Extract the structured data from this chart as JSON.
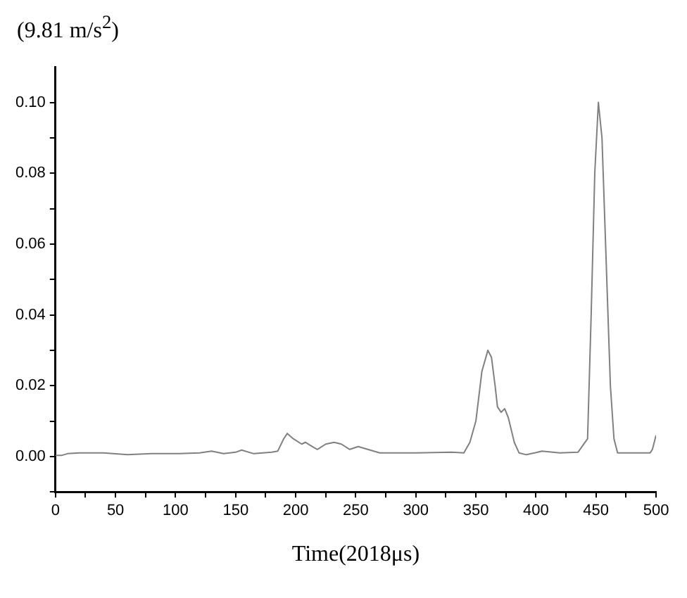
{
  "chart_data": {
    "type": "line",
    "ylabel": "(9.81 m/s$^{2}$)",
    "xlabel": "Time(2018μs)",
    "color": "#808080",
    "grid": false,
    "legend": false,
    "marker": "none",
    "line_style": "solid",
    "xlim": [
      0,
      500
    ],
    "xticks": [
      0,
      {
        "value": 25,
        "label": null
      },
      50,
      {
        "value": 75,
        "label": null
      },
      100,
      {
        "value": 125,
        "label": null
      },
      150,
      {
        "value": 175,
        "label": null
      },
      200,
      {
        "value": 225,
        "label": null
      },
      250,
      {
        "value": 275,
        "label": null
      },
      300,
      {
        "value": 325,
        "label": null
      },
      350,
      {
        "value": 375,
        "label": null
      },
      400,
      {
        "value": 425,
        "label": null
      },
      450,
      {
        "value": 475,
        "label": null
      },
      500
    ],
    "ylim": [
      -0.01,
      0.11
    ],
    "yticks": [
      {
        "value": -0.01,
        "label": null
      },
      {
        "value": 0,
        "label": "0.00"
      },
      {
        "value": 0.01,
        "label": null
      },
      {
        "value": 0.02,
        "label": "0.02"
      },
      {
        "value": 0.03,
        "label": null
      },
      {
        "value": 0.04,
        "label": "0.04"
      },
      {
        "value": 0.05,
        "label": null
      },
      {
        "value": 0.06,
        "label": "0.06"
      },
      {
        "value": 0.07,
        "label": null
      },
      {
        "value": 0.08,
        "label": "0.08"
      },
      {
        "value": 0.09,
        "label": null
      },
      {
        "value": 0.1,
        "label": "0.10"
      }
    ],
    "x": [
      0,
      5,
      10,
      20,
      40,
      60,
      80,
      100,
      120,
      130,
      140,
      150,
      155,
      165,
      180,
      185,
      190,
      193,
      198,
      205,
      208,
      213,
      218,
      225,
      232,
      238,
      245,
      252,
      260,
      270,
      300,
      330,
      340,
      345,
      350,
      355,
      360,
      363,
      366,
      368,
      371,
      374,
      377,
      382,
      386,
      392,
      405,
      420,
      435,
      443,
      446,
      449,
      452,
      455,
      458,
      462,
      465,
      468,
      480,
      495,
      497,
      500
    ],
    "values": [
      0.0003,
      0.0003,
      0.0008,
      0.001,
      0.001,
      0.0005,
      0.0008,
      0.0008,
      0.001,
      0.0015,
      0.0008,
      0.0012,
      0.0018,
      0.0008,
      0.0012,
      0.0015,
      0.005,
      0.0065,
      0.005,
      0.0035,
      0.004,
      0.003,
      0.002,
      0.0035,
      0.004,
      0.0035,
      0.002,
      0.0028,
      0.002,
      0.001,
      0.001,
      0.0012,
      0.001,
      0.004,
      0.01,
      0.024,
      0.03,
      0.028,
      0.02,
      0.014,
      0.0125,
      0.0135,
      0.011,
      0.004,
      0.001,
      0.0005,
      0.0015,
      0.001,
      0.0012,
      0.005,
      0.04,
      0.08,
      0.1,
      0.09,
      0.06,
      0.02,
      0.005,
      0.001,
      0.001,
      0.001,
      0.002,
      0.006
    ]
  }
}
